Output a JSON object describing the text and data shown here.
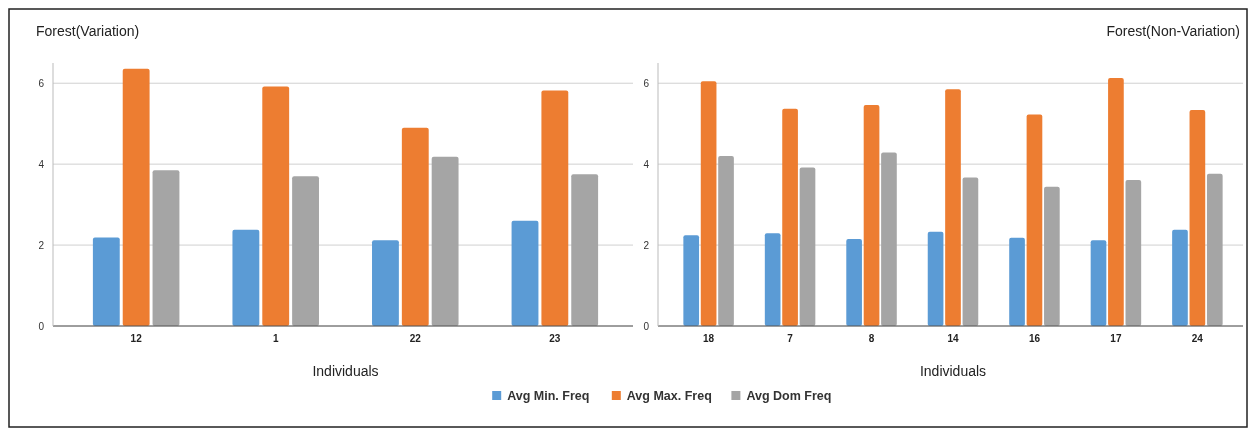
{
  "chart_data": [
    {
      "type": "bar",
      "title": "Forest(Variation)",
      "xlabel": "Individuals",
      "categories": [
        "12",
        "1",
        "22",
        "23"
      ],
      "ylim": [
        0,
        6.5
      ],
      "yticks": [
        0,
        2,
        4,
        6
      ],
      "grid": "y",
      "legend": "bottom",
      "series": [
        {
          "name": "Avg Min. Freq",
          "color": "#5b9bd5",
          "values": [
            2.19,
            2.38,
            2.12,
            2.6
          ]
        },
        {
          "name": "Avg Max. Freq",
          "color": "#ed7d31",
          "values": [
            6.36,
            5.92,
            4.9,
            5.82
          ]
        },
        {
          "name": "Avg Dom Freq",
          "color": "#a5a5a5",
          "values": [
            3.85,
            3.7,
            4.18,
            3.75
          ]
        }
      ]
    },
    {
      "type": "bar",
      "title": "Forest(Non-Variation)",
      "xlabel": "Individuals",
      "categories": [
        "18",
        "7",
        "8",
        "14",
        "16",
        "17",
        "24"
      ],
      "ylim": [
        0,
        6.5
      ],
      "yticks": [
        0,
        2,
        4,
        6
      ],
      "grid": "y",
      "series": [
        {
          "name": "Avg Min. Freq",
          "color": "#5b9bd5",
          "values": [
            2.24,
            2.29,
            2.15,
            2.33,
            2.18,
            2.12,
            2.38
          ]
        },
        {
          "name": "Avg Max. Freq",
          "color": "#ed7d31",
          "values": [
            6.05,
            5.37,
            5.46,
            5.85,
            5.23,
            6.13,
            5.34
          ]
        },
        {
          "name": "Avg Dom Freq",
          "color": "#a5a5a5",
          "values": [
            4.2,
            3.92,
            4.29,
            3.67,
            3.44,
            3.61,
            3.76
          ]
        }
      ]
    }
  ]
}
